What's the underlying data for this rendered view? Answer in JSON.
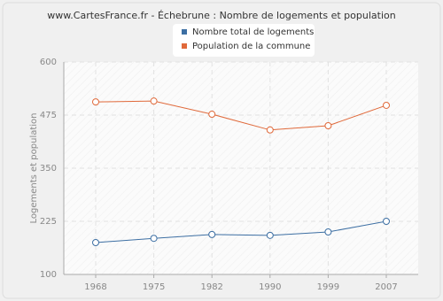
{
  "chart_data": {
    "type": "line",
    "title": "www.CartesFrance.fr - Échebrune : Nombre de logements et population",
    "ylabel": "Logements et population",
    "categories": [
      "1968",
      "1975",
      "1982",
      "1990",
      "1999",
      "2007"
    ],
    "series": [
      {
        "name": "Nombre total de logements",
        "color": "#3d6fa3",
        "values": [
          175,
          185,
          194,
          192,
          200,
          225
        ]
      },
      {
        "name": "Population de la commune",
        "color": "#e0693a",
        "values": [
          506,
          508,
          477,
          440,
          450,
          498
        ]
      }
    ],
    "ylim": [
      100,
      600
    ],
    "yticks": [
      100,
      225,
      350,
      475,
      600
    ],
    "grid": true
  }
}
